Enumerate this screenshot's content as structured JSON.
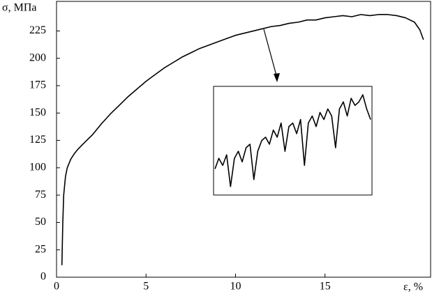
{
  "chart_data": [
    {
      "type": "line",
      "y_label": "σ, МПа",
      "x_label": "ε, %",
      "x": [
        0.3,
        0.35,
        0.4,
        0.5,
        0.6,
        0.8,
        1.0,
        1.2,
        1.5,
        2,
        2.5,
        3,
        3.5,
        4,
        4.5,
        5,
        5.5,
        6,
        6.5,
        7,
        7.5,
        8,
        8.5,
        9,
        9.5,
        10,
        10.5,
        11,
        11.5,
        12,
        12.5,
        13,
        13.5,
        14,
        14.5,
        15,
        15.5,
        16,
        16.5,
        17,
        17.5,
        18,
        18.5,
        19,
        19.5,
        20,
        20.3,
        20.5
      ],
      "values": [
        11,
        50,
        75,
        92,
        100,
        108,
        113,
        117,
        122,
        130,
        140,
        149,
        157,
        165,
        172,
        179,
        185,
        191,
        196,
        201,
        205,
        209,
        212,
        215,
        218,
        221,
        223,
        225,
        227,
        229,
        230,
        232,
        233,
        235,
        235,
        237,
        238,
        239,
        238,
        240,
        239,
        240,
        240,
        239,
        237,
        233,
        226,
        217
      ],
      "color": "#000000",
      "xlim": [
        0,
        20.9
      ],
      "ylim": [
        0,
        252
      ],
      "xticks": [
        0,
        5,
        10,
        15
      ],
      "yticks": [
        0,
        25,
        50,
        75,
        100,
        125,
        150,
        175,
        200,
        225
      ]
    },
    {
      "type": "line",
      "x": [
        12.0,
        12.1,
        12.2,
        12.3,
        12.4,
        12.5,
        12.6,
        12.7,
        12.8,
        12.9,
        13.0,
        13.1,
        13.2,
        13.3,
        13.4,
        13.5,
        13.6,
        13.7,
        13.8,
        13.9,
        14.0,
        14.1,
        14.2,
        14.3,
        14.4,
        14.5,
        14.6,
        14.7,
        14.8,
        14.9,
        15.0,
        15.1,
        15.2,
        15.3,
        15.4,
        15.5,
        15.6,
        15.7,
        15.8,
        15.9,
        16.0
      ],
      "values": [
        228.5,
        230,
        229,
        230.5,
        226,
        230,
        231,
        229.5,
        231.5,
        232,
        227,
        231,
        232.5,
        233,
        232,
        234,
        233,
        235,
        231,
        234.5,
        235,
        233.5,
        235.5,
        229,
        235,
        236,
        234.5,
        236.5,
        235.5,
        237,
        236,
        231.5,
        237,
        238,
        236,
        238.5,
        237.5,
        238,
        239,
        237,
        235.5
      ],
      "color": "#000000",
      "xlim": [
        12,
        16
      ],
      "ylim": [
        225,
        240
      ]
    }
  ]
}
